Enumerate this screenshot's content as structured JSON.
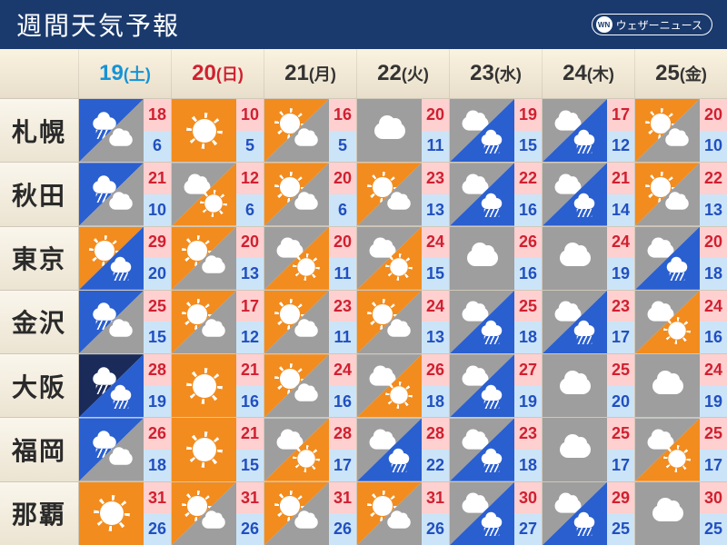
{
  "title": "週間天気予報",
  "brand_abbr": "WN",
  "brand_name": "ウェザーニュース",
  "colors": {
    "header_bg": "#1a3a6e",
    "date_strip_bg_top": "#faf3e0",
    "date_strip_bg_bottom": "#e8decb",
    "sunny_bg": "#f28c1e",
    "cloudy_bg": "#9e9e9e",
    "rain_bg": "#2a5fd0",
    "night_bg": "#1a2b5a",
    "hi_bg": "#ffd0d0",
    "hi_fg": "#d02030",
    "lo_bg": "#cce4f7",
    "lo_fg": "#2050c0",
    "sat_color": "#1593d6",
    "sun_color": "#d02030",
    "weekday_color": "#333333"
  },
  "dates": [
    {
      "day": "19",
      "dow": "(土)",
      "color": "#1593d6"
    },
    {
      "day": "20",
      "dow": "(日)",
      "color": "#d02030"
    },
    {
      "day": "21",
      "dow": "(月)",
      "color": "#333333"
    },
    {
      "day": "22",
      "dow": "(火)",
      "color": "#333333"
    },
    {
      "day": "23",
      "dow": "(水)",
      "color": "#333333"
    },
    {
      "day": "24",
      "dow": "(木)",
      "color": "#333333"
    },
    {
      "day": "25",
      "dow": "(金)",
      "color": "#333333"
    }
  ],
  "cities": [
    {
      "name": "札幌",
      "cells": [
        {
          "icon": [
            "rain",
            "cloudy"
          ],
          "hi": 18,
          "lo": 6
        },
        {
          "icon": [
            "sunny"
          ],
          "hi": 10,
          "lo": 5
        },
        {
          "icon": [
            "sunny",
            "cloudy"
          ],
          "hi": 16,
          "lo": 5
        },
        {
          "icon": [
            "cloudy"
          ],
          "hi": 20,
          "lo": 11
        },
        {
          "icon": [
            "cloudy",
            "rain"
          ],
          "hi": 19,
          "lo": 15
        },
        {
          "icon": [
            "cloudy",
            "rain"
          ],
          "hi": 17,
          "lo": 12
        },
        {
          "icon": [
            "sunny",
            "cloudy"
          ],
          "hi": 20,
          "lo": 10
        }
      ]
    },
    {
      "name": "秋田",
      "cells": [
        {
          "icon": [
            "rain",
            "cloudy"
          ],
          "hi": 21,
          "lo": 10
        },
        {
          "icon": [
            "cloudy",
            "sunny"
          ],
          "hi": 12,
          "lo": 6
        },
        {
          "icon": [
            "sunny",
            "cloudy"
          ],
          "hi": 20,
          "lo": 6
        },
        {
          "icon": [
            "sunny",
            "cloudy"
          ],
          "hi": 23,
          "lo": 13
        },
        {
          "icon": [
            "cloudy",
            "rain"
          ],
          "hi": 22,
          "lo": 16
        },
        {
          "icon": [
            "cloudy",
            "rain"
          ],
          "hi": 21,
          "lo": 14
        },
        {
          "icon": [
            "sunny",
            "cloudy"
          ],
          "hi": 22,
          "lo": 13
        }
      ]
    },
    {
      "name": "東京",
      "cells": [
        {
          "icon": [
            "sunny",
            "rain"
          ],
          "hi": 29,
          "lo": 20
        },
        {
          "icon": [
            "sunny",
            "cloudy"
          ],
          "hi": 20,
          "lo": 13
        },
        {
          "icon": [
            "cloudy",
            "sunny"
          ],
          "hi": 20,
          "lo": 11
        },
        {
          "icon": [
            "cloudy",
            "sunny"
          ],
          "hi": 24,
          "lo": 15
        },
        {
          "icon": [
            "cloudy"
          ],
          "hi": 26,
          "lo": 16
        },
        {
          "icon": [
            "cloudy"
          ],
          "hi": 24,
          "lo": 19
        },
        {
          "icon": [
            "cloudy",
            "rain"
          ],
          "hi": 20,
          "lo": 18
        }
      ]
    },
    {
      "name": "金沢",
      "cells": [
        {
          "icon": [
            "rain",
            "cloudy"
          ],
          "hi": 25,
          "lo": 15
        },
        {
          "icon": [
            "sunny",
            "cloudy"
          ],
          "hi": 17,
          "lo": 12
        },
        {
          "icon": [
            "sunny",
            "cloudy"
          ],
          "hi": 23,
          "lo": 11
        },
        {
          "icon": [
            "sunny",
            "cloudy"
          ],
          "hi": 24,
          "lo": 13
        },
        {
          "icon": [
            "cloudy",
            "rain"
          ],
          "hi": 25,
          "lo": 18
        },
        {
          "icon": [
            "cloudy",
            "rain"
          ],
          "hi": 23,
          "lo": 17
        },
        {
          "icon": [
            "cloudy",
            "sunny"
          ],
          "hi": 24,
          "lo": 16
        }
      ]
    },
    {
      "name": "大阪",
      "cells": [
        {
          "icon": [
            "night",
            "rain"
          ],
          "hi": 28,
          "lo": 19
        },
        {
          "icon": [
            "sunny"
          ],
          "hi": 21,
          "lo": 16
        },
        {
          "icon": [
            "sunny",
            "cloudy"
          ],
          "hi": 24,
          "lo": 16
        },
        {
          "icon": [
            "cloudy",
            "sunny"
          ],
          "hi": 26,
          "lo": 18
        },
        {
          "icon": [
            "cloudy",
            "rain"
          ],
          "hi": 27,
          "lo": 19
        },
        {
          "icon": [
            "cloudy"
          ],
          "hi": 25,
          "lo": 20
        },
        {
          "icon": [
            "cloudy"
          ],
          "hi": 24,
          "lo": 19
        }
      ]
    },
    {
      "name": "福岡",
      "cells": [
        {
          "icon": [
            "rain",
            "cloudy"
          ],
          "hi": 26,
          "lo": 18
        },
        {
          "icon": [
            "sunny"
          ],
          "hi": 21,
          "lo": 15
        },
        {
          "icon": [
            "cloudy",
            "sunny"
          ],
          "hi": 28,
          "lo": 17
        },
        {
          "icon": [
            "cloudy",
            "rain"
          ],
          "hi": 28,
          "lo": 22
        },
        {
          "icon": [
            "cloudy",
            "rain"
          ],
          "hi": 23,
          "lo": 18
        },
        {
          "icon": [
            "cloudy"
          ],
          "hi": 25,
          "lo": 17
        },
        {
          "icon": [
            "cloudy",
            "sunny"
          ],
          "hi": 25,
          "lo": 17
        }
      ]
    },
    {
      "name": "那覇",
      "cells": [
        {
          "icon": [
            "sunny"
          ],
          "hi": 31,
          "lo": 26
        },
        {
          "icon": [
            "sunny",
            "cloudy"
          ],
          "hi": 31,
          "lo": 26
        },
        {
          "icon": [
            "sunny",
            "cloudy"
          ],
          "hi": 31,
          "lo": 26
        },
        {
          "icon": [
            "sunny",
            "cloudy"
          ],
          "hi": 31,
          "lo": 26
        },
        {
          "icon": [
            "cloudy",
            "rain"
          ],
          "hi": 30,
          "lo": 27
        },
        {
          "icon": [
            "cloudy",
            "rain"
          ],
          "hi": 29,
          "lo": 25
        },
        {
          "icon": [
            "cloudy"
          ],
          "hi": 30,
          "lo": 25
        }
      ]
    }
  ]
}
